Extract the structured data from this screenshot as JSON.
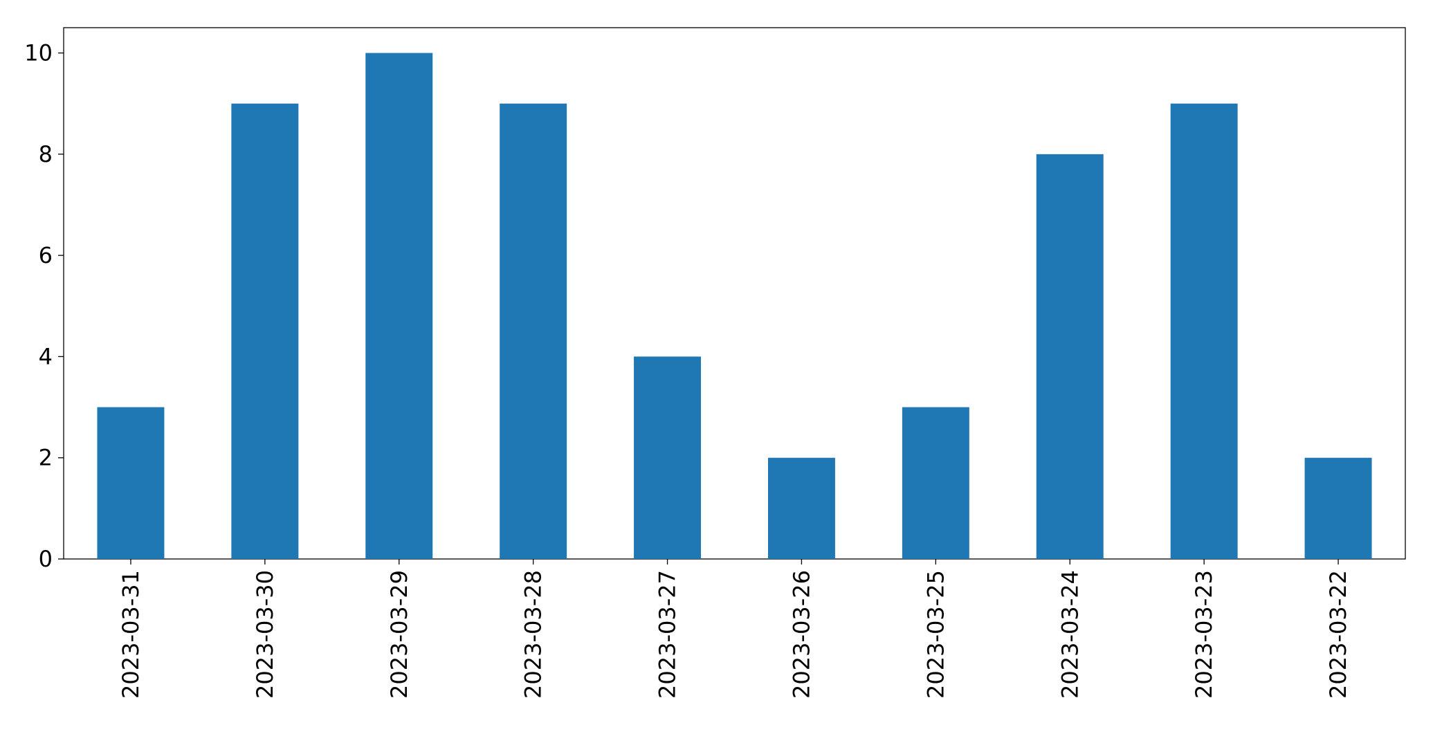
{
  "chart_data": {
    "type": "bar",
    "categories": [
      "2023-03-31",
      "2023-03-30",
      "2023-03-29",
      "2023-03-28",
      "2023-03-27",
      "2023-03-26",
      "2023-03-25",
      "2023-03-24",
      "2023-03-23",
      "2023-03-22"
    ],
    "values": [
      3,
      9,
      10,
      9,
      4,
      2,
      3,
      8,
      9,
      2
    ],
    "color": "#1f77b4",
    "ylim": [
      0,
      10.5
    ],
    "yticks": [
      0,
      2,
      4,
      6,
      8,
      10
    ],
    "grid": false
  }
}
